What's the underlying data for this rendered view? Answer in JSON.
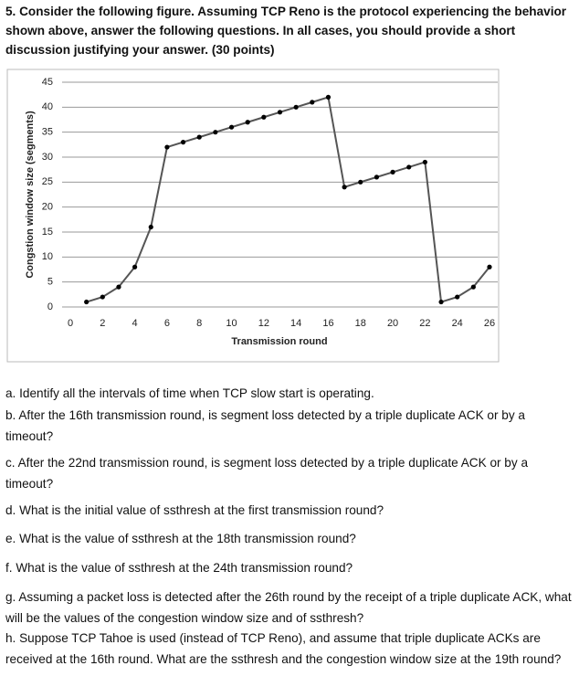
{
  "header": {
    "title": "5. Consider the following figure. Assuming TCP Reno is the protocol experiencing the behavior shown above, answer the following questions. In all cases, you should provide a short discussion justifying your answer. (30 points)"
  },
  "chart_data": {
    "type": "line",
    "x_label": "Transmission round",
    "y_label": "Congstion window size (segments)",
    "x": [
      1,
      2,
      3,
      4,
      5,
      6,
      7,
      8,
      9,
      10,
      11,
      12,
      13,
      14,
      15,
      16,
      17,
      18,
      19,
      20,
      21,
      22,
      23,
      24,
      25,
      26
    ],
    "series": [
      {
        "color": "#555555",
        "values": [
          1,
          2,
          4,
          8,
          16,
          32,
          33,
          34,
          35,
          36,
          37,
          38,
          39,
          40,
          41,
          42,
          24,
          25,
          26,
          27,
          28,
          29,
          1,
          2,
          4,
          8
        ]
      }
    ],
    "xlim": [
      0,
      26
    ],
    "xticks": [
      0,
      2,
      4,
      6,
      8,
      10,
      12,
      14,
      16,
      18,
      20,
      22,
      24,
      26
    ],
    "ylim": [
      0,
      45
    ],
    "yticks": [
      0,
      5,
      10,
      15,
      20,
      25,
      30,
      35,
      40,
      45
    ],
    "grid": true
  },
  "questions": [
    "a. Identify all the intervals of time when TCP slow start is operating.",
    "b. After the 16th transmission round, is segment loss detected by a triple duplicate ACK or by a timeout?",
    "c. After the 22nd transmission round, is segment loss detected by a triple duplicate ACK or by a timeout?",
    "d. What is the initial value of ssthresh at the first transmission round?",
    "e. What is the value of ssthresh at the 18th transmission round?",
    "f. What is the value of ssthresh at the 24th transmission round?",
    "g. Assuming a packet loss is detected after the 26th round by the receipt of a triple duplicate ACK, what will be the values of the congestion window size and of ssthresh?",
    "h. Suppose TCP Tahoe is used (instead of TCP Reno), and assume that triple duplicate ACKs are received at the 16th round. What are the ssthresh and the congestion window size at the 19th round?"
  ]
}
